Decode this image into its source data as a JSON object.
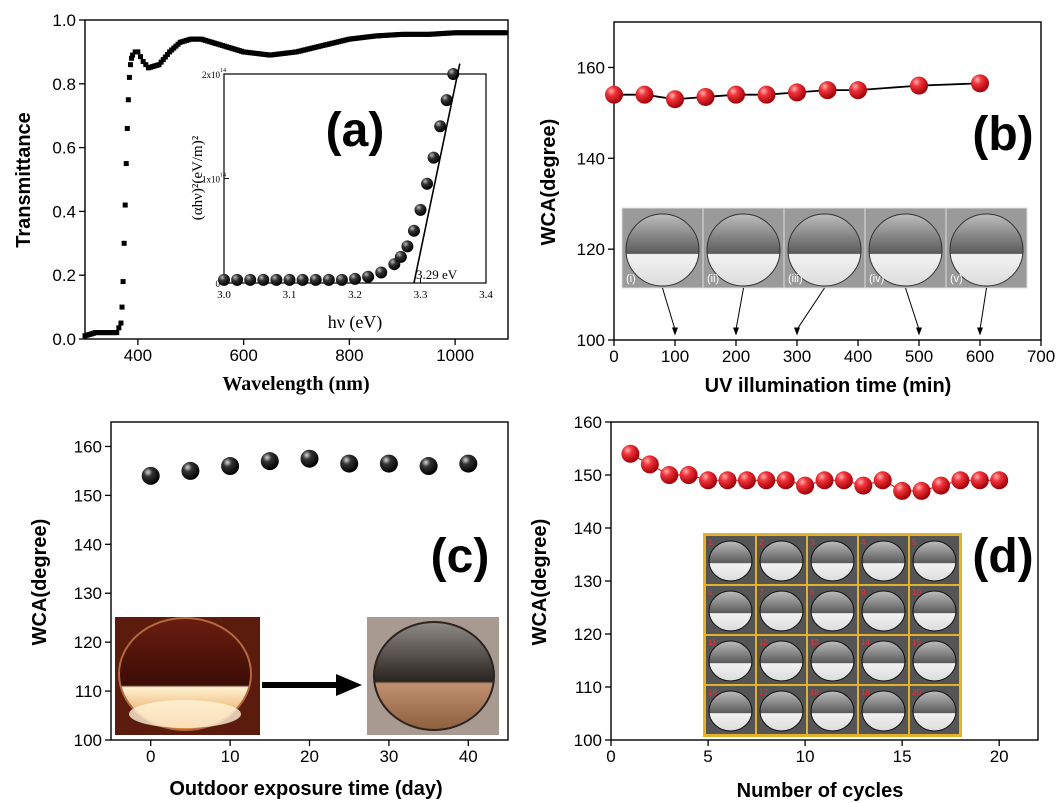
{
  "chart_data": [
    {
      "panel": "a",
      "type": "scatter",
      "panel_label": "(a)",
      "xlabel": "Wavelength (nm)",
      "ylabel": "Transmittance",
      "xlim": [
        300,
        1100
      ],
      "ylim": [
        0,
        1.0
      ],
      "xticks": [
        400,
        600,
        800,
        1000
      ],
      "yticks": [
        0.0,
        0.2,
        0.4,
        0.6,
        0.8,
        1.0
      ],
      "ytick_labels": [
        "0.0",
        "0.2",
        "0.4",
        "0.6",
        "0.8",
        "1.0"
      ],
      "series": [
        {
          "x": [
            300,
            320,
            340,
            360,
            368,
            370,
            372,
            374,
            376,
            378,
            380,
            382,
            384,
            386,
            388,
            390,
            395,
            400,
            410,
            420,
            440,
            460,
            480,
            500,
            520,
            540,
            560,
            600,
            650,
            700,
            750,
            800,
            850,
            900,
            950,
            1000,
            1050,
            1100
          ],
          "y": [
            0.01,
            0.02,
            0.02,
            0.02,
            0.05,
            0.1,
            0.18,
            0.3,
            0.42,
            0.55,
            0.66,
            0.75,
            0.82,
            0.86,
            0.88,
            0.89,
            0.9,
            0.9,
            0.87,
            0.85,
            0.86,
            0.9,
            0.93,
            0.94,
            0.94,
            0.93,
            0.92,
            0.9,
            0.89,
            0.9,
            0.92,
            0.94,
            0.95,
            0.955,
            0.955,
            0.96,
            0.96,
            0.96
          ]
        }
      ],
      "inset": {
        "type": "scatter",
        "xlabel": "hν (eV)",
        "ylabel": "(αhν)²(eV/m)²",
        "xlim": [
          3.0,
          3.4
        ],
        "ylim": [
          0,
          200000000000000.0
        ],
        "xticks": [
          3.0,
          3.1,
          3.2,
          3.3,
          3.4
        ],
        "xtick_labels": [
          "3.0",
          "3.1",
          "3.2",
          "3.3",
          "3.4"
        ],
        "ytick_labels": [
          "0",
          "1x10",
          "2x10"
        ],
        "ytick_exponent": "14",
        "annotation": "3.29 eV",
        "x": [
          3.0,
          3.02,
          3.04,
          3.06,
          3.08,
          3.1,
          3.12,
          3.14,
          3.16,
          3.18,
          3.2,
          3.22,
          3.24,
          3.26,
          3.27,
          3.28,
          3.29,
          3.3,
          3.31,
          3.32,
          3.33,
          3.34,
          3.35
        ],
        "y": [
          3000000000000.0,
          3000000000000.0,
          3000000000000.0,
          3000000000000.0,
          3000000000000.0,
          3000000000000.0,
          3000000000000.0,
          3000000000000.0,
          3000000000000.0,
          3000000000000.0,
          4000000000000.0,
          6000000000000.0,
          10000000000000.0,
          18000000000000.0,
          25000000000000.0,
          35000000000000.0,
          50000000000000.0,
          70000000000000.0,
          95000000000000.0,
          120000000000000.0,
          150000000000000.0,
          175000000000000.0,
          200000000000000.0
        ],
        "fit_line": {
          "x": [
            3.29,
            3.36
          ],
          "y": [
            0,
            210000000000000.0
          ]
        }
      }
    },
    {
      "panel": "b",
      "type": "line",
      "panel_label": "(b)",
      "xlabel": "UV illumination time (min)",
      "ylabel": "WCA(degree)",
      "xlim": [
        0,
        700
      ],
      "ylim": [
        100,
        170
      ],
      "xticks": [
        0,
        100,
        200,
        300,
        400,
        500,
        600,
        700
      ],
      "yticks": [
        100,
        120,
        140,
        160
      ],
      "series": [
        {
          "x": [
            0,
            50,
            100,
            150,
            200,
            250,
            300,
            350,
            400,
            500,
            600
          ],
          "y": [
            154,
            154,
            153,
            153.5,
            154,
            154,
            154.5,
            155,
            155,
            156,
            156.5
          ],
          "color": "#e8141e"
        }
      ],
      "inset_labels": [
        "(i)",
        "(ii)",
        "(iii)",
        "(iv)",
        "(v)"
      ],
      "inset_arrow_x": [
        100,
        200,
        300,
        500,
        600
      ]
    },
    {
      "panel": "c",
      "type": "scatter",
      "panel_label": "(c)",
      "xlabel": "Outdoor exposure time (day)",
      "ylabel": "WCA(degree)",
      "xlim": [
        -5,
        45
      ],
      "ylim": [
        100,
        165
      ],
      "xticks": [
        0,
        10,
        20,
        30,
        40
      ],
      "yticks": [
        100,
        110,
        120,
        130,
        140,
        150,
        160
      ],
      "series": [
        {
          "x": [
            0,
            5,
            10,
            15,
            20,
            25,
            30,
            35,
            40
          ],
          "y": [
            154,
            155,
            156,
            157,
            157.5,
            156.5,
            156.5,
            156,
            156.5
          ],
          "color": "#111111"
        }
      ]
    },
    {
      "panel": "d",
      "type": "line",
      "panel_label": "(d)",
      "xlabel": "Number of cycles",
      "ylabel": "WCA(degree)",
      "xlim": [
        0,
        22
      ],
      "ylim": [
        100,
        160
      ],
      "xticks": [
        0,
        5,
        10,
        15,
        20
      ],
      "yticks": [
        100,
        110,
        120,
        130,
        140,
        150,
        160
      ],
      "series": [
        {
          "x": [
            1,
            2,
            3,
            4,
            5,
            6,
            7,
            8,
            9,
            10,
            11,
            12,
            13,
            14,
            15,
            16,
            17,
            18,
            19,
            20
          ],
          "y": [
            154,
            152,
            150,
            150,
            149,
            149,
            149,
            149,
            149,
            148,
            149,
            149,
            148,
            149,
            147,
            147,
            148,
            149,
            149,
            149
          ],
          "color": "#e8141e"
        }
      ],
      "inset_labels": [
        "1",
        "2",
        "3",
        "4",
        "5",
        "6",
        "7",
        "8",
        "9",
        "10",
        "11",
        "12",
        "13",
        "14",
        "15",
        "16",
        "17",
        "18",
        "19",
        "20"
      ]
    }
  ]
}
